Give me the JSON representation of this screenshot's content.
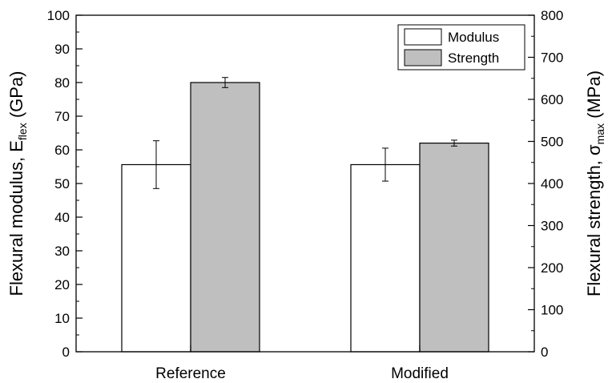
{
  "chart_data": {
    "type": "bar",
    "categories": [
      "Reference",
      "Modified"
    ],
    "series": [
      {
        "name": "Modulus",
        "axis": "left",
        "color": "#ffffff",
        "values": [
          55.6,
          55.6
        ],
        "errors": [
          7.1,
          4.9
        ]
      },
      {
        "name": "Strength",
        "axis": "right",
        "color": "#bfbfbf",
        "values": [
          640,
          496
        ],
        "errors": [
          12,
          7
        ]
      }
    ],
    "y_left": {
      "label_main": "Flexural modulus, E",
      "label_sub": "flex",
      "label_unit": " (GPa)",
      "ylim": [
        0,
        100
      ],
      "ticks": [
        "0",
        "10",
        "20",
        "30",
        "40",
        "50",
        "60",
        "70",
        "80",
        "90",
        "100"
      ]
    },
    "y_right": {
      "label_main": "Flexural strength, σ",
      "label_sub": "max",
      "label_unit": " (MPa)",
      "ylim": [
        0,
        800
      ],
      "ticks": [
        "0",
        "100",
        "200",
        "300",
        "400",
        "500",
        "600",
        "700",
        "800"
      ]
    },
    "legend": {
      "position": "top-right",
      "entries": [
        "Modulus",
        "Strength"
      ]
    },
    "grid": false
  }
}
